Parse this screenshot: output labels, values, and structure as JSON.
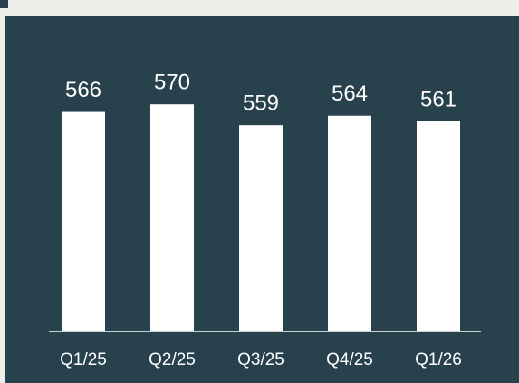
{
  "chart_data": {
    "type": "bar",
    "categories": [
      "Q1/25",
      "Q2/25",
      "Q3/25",
      "Q4/25",
      "Q1/26"
    ],
    "values": [
      566,
      570,
      559,
      564,
      561
    ],
    "color": "#ffffff",
    "ylim": [
      450,
      600
    ]
  }
}
